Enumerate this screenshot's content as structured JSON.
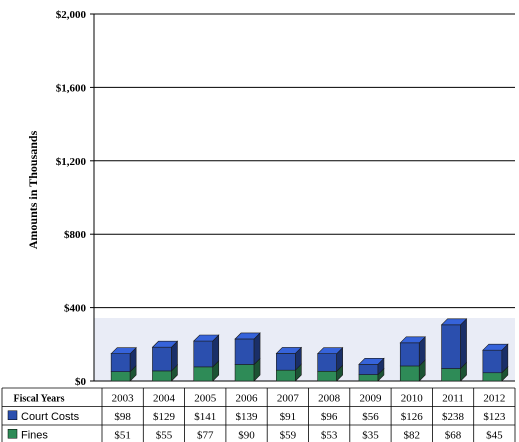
{
  "chart_data": {
    "type": "bar",
    "stacked": true,
    "three_d": true,
    "ylabel": "Amounts in Thousands",
    "ylim": [
      0,
      2000
    ],
    "yticks": [
      "$0",
      "$400",
      "$800",
      "$1,200",
      "$1,600",
      "$2,000"
    ],
    "ytick_values": [
      0,
      400,
      800,
      1200,
      1600,
      2000
    ],
    "grid": true,
    "table_header": "Fiscal Years",
    "categories": [
      "2003",
      "2004",
      "2005",
      "2006",
      "2007",
      "2008",
      "2009",
      "2010",
      "2011",
      "2012"
    ],
    "series": [
      {
        "name": "Fines",
        "color": "#2e8b57",
        "values": [
          51,
          55,
          77,
          90,
          59,
          53,
          35,
          82,
          68,
          45
        ],
        "labels": [
          "$51",
          "$55",
          "$77",
          "$90",
          "$59",
          "$53",
          "$35",
          "$82",
          "$68",
          "$45"
        ]
      },
      {
        "name": "Court Costs",
        "color": "#2b4fae",
        "values": [
          98,
          129,
          141,
          139,
          91,
          96,
          56,
          126,
          238,
          123
        ],
        "labels": [
          "$98",
          "$129",
          "$141",
          "$139",
          "$91",
          "$96",
          "$56",
          "$126",
          "$238",
          "$123"
        ]
      }
    ]
  }
}
